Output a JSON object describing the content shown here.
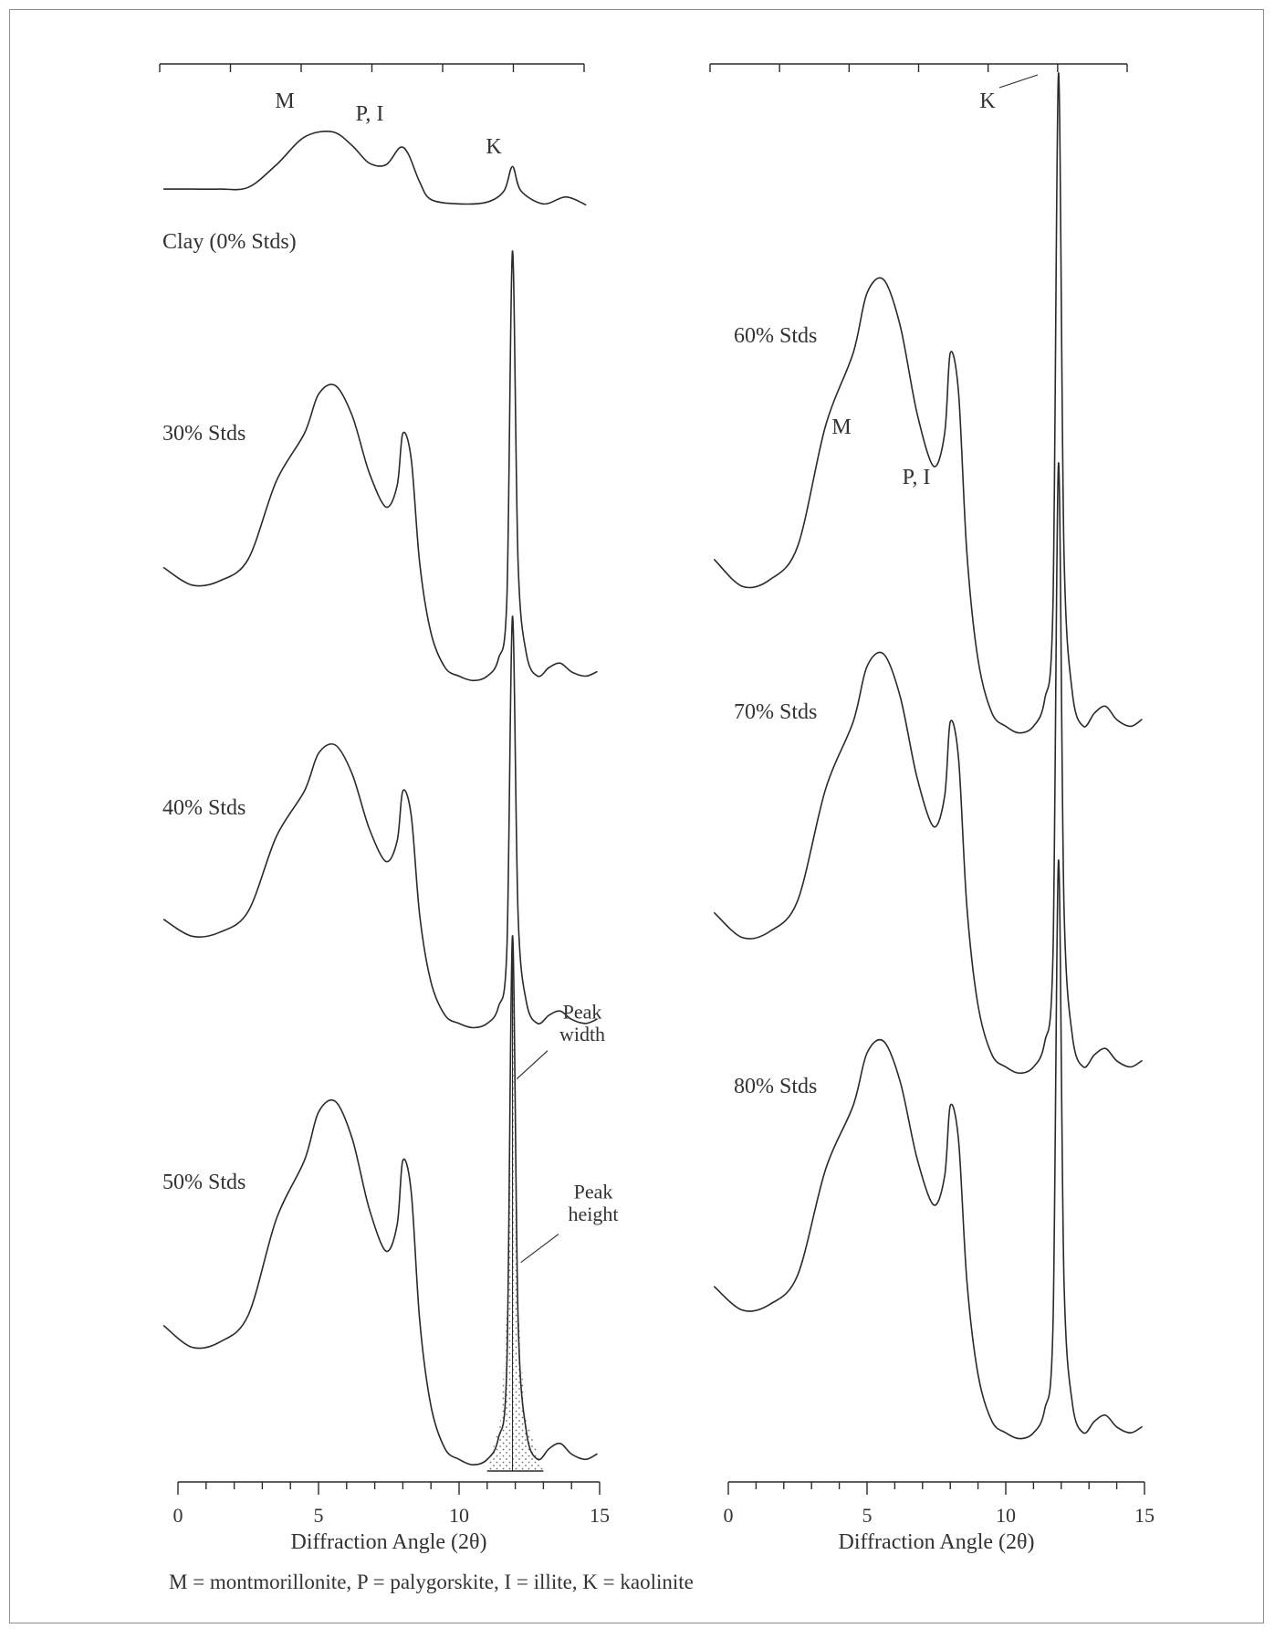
{
  "chart_data": [
    {
      "type": "line",
      "panel": "left",
      "xlabel": "Diffraction Angle (2θ)",
      "xlim": [
        0,
        15
      ],
      "xticks": [
        0,
        5,
        10,
        15
      ],
      "series": [
        {
          "name": "Clay (0% Stds)",
          "x": [
            -0.5,
            0.5,
            1.5,
            2.5,
            3.5,
            4.5,
            5.5,
            6.2,
            6.8,
            7.4,
            7.9,
            8.2,
            8.6,
            9.0,
            10.0,
            11.0,
            11.6,
            11.9,
            12.2,
            13.0,
            13.8,
            14.5
          ],
          "y": [
            0.22,
            0.22,
            0.22,
            0.24,
            0.5,
            0.82,
            0.88,
            0.72,
            0.52,
            0.5,
            0.7,
            0.62,
            0.3,
            0.1,
            0.05,
            0.07,
            0.2,
            0.48,
            0.2,
            0.05,
            0.13,
            0.04
          ]
        },
        {
          "name": "30% Stds",
          "x": [
            -0.5,
            0.5,
            1.5,
            2.5,
            3.5,
            4.5,
            5.0,
            5.6,
            6.2,
            6.8,
            7.4,
            7.8,
            8.0,
            8.3,
            8.6,
            9.0,
            9.5,
            10.0,
            10.5,
            11.0,
            11.4,
            11.7,
            11.9,
            12.1,
            12.4,
            12.8,
            13.2,
            13.6,
            14.0,
            14.5,
            14.9
          ],
          "y": [
            0.27,
            0.23,
            0.24,
            0.29,
            0.47,
            0.58,
            0.67,
            0.69,
            0.62,
            0.49,
            0.41,
            0.46,
            0.58,
            0.52,
            0.28,
            0.12,
            0.04,
            0.02,
            0.01,
            0.02,
            0.06,
            0.2,
            1.0,
            0.28,
            0.07,
            0.02,
            0.04,
            0.05,
            0.03,
            0.02,
            0.03
          ]
        },
        {
          "name": "40% Stds",
          "x": [
            -0.5,
            0.5,
            1.5,
            2.5,
            3.5,
            4.5,
            5.0,
            5.6,
            6.2,
            6.8,
            7.4,
            7.8,
            8.0,
            8.3,
            8.6,
            9.0,
            9.5,
            10.0,
            10.5,
            11.0,
            11.4,
            11.7,
            11.9,
            12.1,
            12.4,
            12.8,
            13.2,
            13.6,
            14.0,
            14.5,
            14.9
          ],
          "y": [
            0.27,
            0.23,
            0.24,
            0.29,
            0.47,
            0.58,
            0.67,
            0.69,
            0.62,
            0.49,
            0.41,
            0.46,
            0.58,
            0.52,
            0.28,
            0.12,
            0.04,
            0.02,
            0.01,
            0.02,
            0.06,
            0.2,
            1.0,
            0.28,
            0.07,
            0.02,
            0.04,
            0.05,
            0.03,
            0.02,
            0.03
          ]
        },
        {
          "name": "50% Stds",
          "x": [
            -0.5,
            0.5,
            1.5,
            2.5,
            3.5,
            4.5,
            5.0,
            5.6,
            6.2,
            6.8,
            7.4,
            7.8,
            8.0,
            8.3,
            8.6,
            9.0,
            9.5,
            10.0,
            10.5,
            11.0,
            11.4,
            11.7,
            11.9,
            12.1,
            12.4,
            12.8,
            13.2,
            13.6,
            14.0,
            14.5,
            14.9
          ],
          "y": [
            0.27,
            0.23,
            0.24,
            0.29,
            0.47,
            0.58,
            0.67,
            0.69,
            0.62,
            0.49,
            0.41,
            0.46,
            0.58,
            0.52,
            0.28,
            0.12,
            0.04,
            0.02,
            0.01,
            0.02,
            0.06,
            0.2,
            1.0,
            0.28,
            0.07,
            0.02,
            0.04,
            0.05,
            0.03,
            0.02,
            0.03
          ]
        }
      ]
    },
    {
      "type": "line",
      "panel": "right",
      "xlabel": "Diffraction Angle (2θ)",
      "xlim": [
        0,
        15
      ],
      "xticks": [
        0,
        5,
        10,
        15
      ],
      "series": [
        {
          "name": "60% Stds",
          "x": [
            -0.5,
            0.5,
            1.5,
            2.5,
            3.5,
            4.5,
            5.0,
            5.6,
            6.2,
            6.8,
            7.4,
            7.8,
            8.0,
            8.3,
            8.6,
            9.0,
            9.5,
            10.0,
            10.5,
            11.0,
            11.4,
            11.7,
            11.9,
            12.1,
            12.4,
            12.8,
            13.2,
            13.6,
            14.0,
            14.5,
            14.9
          ],
          "y": [
            0.27,
            0.23,
            0.24,
            0.29,
            0.47,
            0.58,
            0.67,
            0.69,
            0.62,
            0.49,
            0.41,
            0.46,
            0.58,
            0.52,
            0.28,
            0.12,
            0.04,
            0.02,
            0.01,
            0.02,
            0.06,
            0.2,
            1.0,
            0.28,
            0.07,
            0.02,
            0.04,
            0.05,
            0.03,
            0.02,
            0.03
          ]
        },
        {
          "name": "70% Stds",
          "x": [
            -0.5,
            0.5,
            1.5,
            2.5,
            3.5,
            4.5,
            5.0,
            5.6,
            6.2,
            6.8,
            7.4,
            7.8,
            8.0,
            8.3,
            8.6,
            9.0,
            9.5,
            10.0,
            10.5,
            11.0,
            11.4,
            11.7,
            11.9,
            12.1,
            12.4,
            12.8,
            13.2,
            13.6,
            14.0,
            14.5,
            14.9
          ],
          "y": [
            0.27,
            0.23,
            0.24,
            0.29,
            0.47,
            0.58,
            0.67,
            0.69,
            0.62,
            0.49,
            0.41,
            0.46,
            0.58,
            0.52,
            0.28,
            0.12,
            0.04,
            0.02,
            0.01,
            0.02,
            0.06,
            0.2,
            1.0,
            0.28,
            0.07,
            0.02,
            0.04,
            0.05,
            0.03,
            0.02,
            0.03
          ]
        },
        {
          "name": "80% Stds",
          "x": [
            -0.5,
            0.5,
            1.5,
            2.5,
            3.5,
            4.5,
            5.0,
            5.6,
            6.2,
            6.8,
            7.4,
            7.8,
            8.0,
            8.3,
            8.6,
            9.0,
            9.5,
            10.0,
            10.5,
            11.0,
            11.4,
            11.7,
            11.9,
            12.1,
            12.4,
            12.8,
            13.2,
            13.6,
            14.0,
            14.5,
            14.9
          ],
          "y": [
            0.27,
            0.23,
            0.24,
            0.29,
            0.47,
            0.58,
            0.67,
            0.69,
            0.62,
            0.49,
            0.41,
            0.46,
            0.58,
            0.52,
            0.28,
            0.12,
            0.04,
            0.02,
            0.01,
            0.02,
            0.06,
            0.2,
            1.0,
            0.28,
            0.07,
            0.02,
            0.04,
            0.05,
            0.03,
            0.02,
            0.03
          ]
        }
      ]
    }
  ],
  "peak_labels": {
    "left": [
      "M",
      "P, I",
      "K"
    ],
    "right": [
      "K",
      "M",
      "P, I"
    ]
  },
  "annotations": {
    "peak_width": "Peak\nwidth",
    "peak_height": "Peak\nheight"
  },
  "legend_text": "M = montmorillonite, P = palygorskite, I = illite, K = kaolinite",
  "colors": {
    "line": "#2a2a2a",
    "frame": "#8c8c8c",
    "shade": "#bcbcbc"
  }
}
